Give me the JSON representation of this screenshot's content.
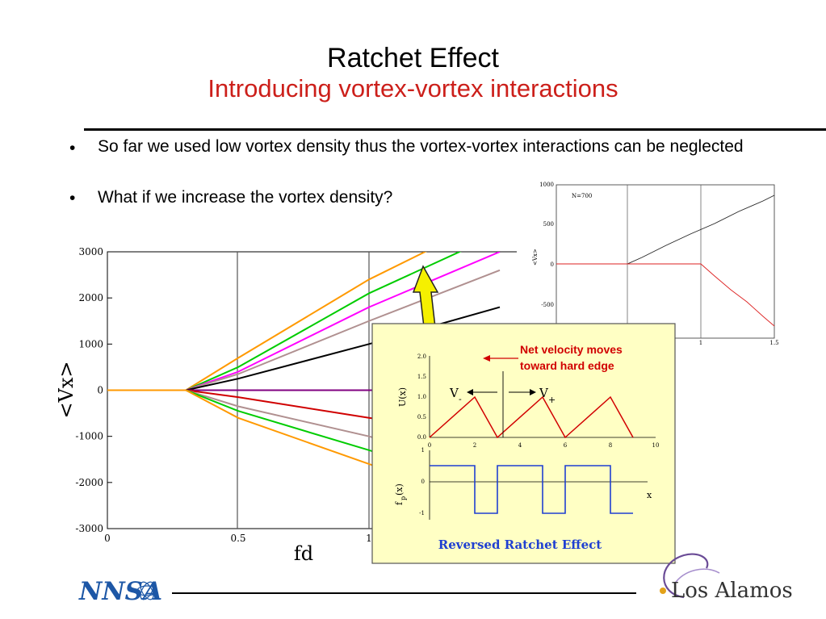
{
  "slide": {
    "title": "Ratchet Effect",
    "subtitle": "Introducing vortex-vortex interactions",
    "bullets": [
      "So far we used low vortex density thus the vortex-vortex interactions can be neglected",
      "What if we increase the vortex density?"
    ]
  },
  "main_plot": {
    "ylabel": "<Vx>",
    "xlabel": "fd",
    "yticks": [
      "3000",
      "2000",
      "1000",
      "0",
      "-1000",
      "-2000",
      "-3000"
    ],
    "xticks": [
      "0",
      "0.5",
      "1"
    ]
  },
  "inset_plot": {
    "label": "N=700",
    "ylabel": "<Vx>",
    "yticks": [
      "1000",
      "500",
      "0",
      "-500"
    ],
    "xticks": [
      "1",
      "1.5"
    ]
  },
  "callout": {
    "annotation_line1": "Net velocity moves",
    "annotation_line2": "toward hard edge",
    "u_label": "U(x)",
    "f_label": "f",
    "f_sub": "p",
    "f_suffix": "(x)",
    "x_label": "x",
    "v_minus": "V",
    "v_minus_sub": "-",
    "v_plus": "V",
    "v_plus_sub": "+",
    "u_yticks": [
      "2.0",
      "1.5",
      "1.0",
      "0.5",
      "0.0"
    ],
    "u_xticks": [
      "0",
      "2",
      "4",
      "6",
      "8",
      "10"
    ],
    "f_yticks": [
      "1",
      "0",
      "-1"
    ],
    "caption": "Reversed Ratchet Effect"
  },
  "logos": {
    "left": "NNSA",
    "right": "Los Alamos"
  },
  "colors": {
    "title": "#000000",
    "subtitle": "#cc1f1a",
    "callout_bg": "#ffffc4",
    "callout_red": "#d10000",
    "callout_blue": "#1f3fd1",
    "arrow_yellow": "#f5f000",
    "nnsa_blue": "#1d57a6"
  },
  "chart_data": {
    "type": "line",
    "xlabel": "fd",
    "ylabel": "<Vx>",
    "xlim": [
      0,
      1.5
    ],
    "ylim": [
      -3000,
      3000
    ],
    "x": [
      0,
      0.3,
      0.5,
      1.0,
      1.5
    ],
    "series": [
      {
        "color": "#ff9900",
        "values": [
          0,
          0,
          700,
          2400,
          3800
        ]
      },
      {
        "color": "#00cc00",
        "values": [
          0,
          0,
          500,
          2100,
          3400
        ]
      },
      {
        "color": "#ff00ff",
        "values": [
          0,
          0,
          400,
          1800,
          3000
        ]
      },
      {
        "color": "#b09090",
        "values": [
          0,
          0,
          350,
          1500,
          2600
        ]
      },
      {
        "color": "#000000",
        "values": [
          0,
          0,
          250,
          1000,
          1800
        ]
      },
      {
        "color": "#800080",
        "values": [
          0,
          0,
          0,
          0,
          0
        ]
      },
      {
        "color": "#d00000",
        "values": [
          0,
          0,
          -150,
          -600,
          -1000
        ]
      },
      {
        "color": "#b09090",
        "values": [
          0,
          0,
          -350,
          -1000,
          -1800
        ]
      },
      {
        "color": "#00cc00",
        "values": [
          0,
          0,
          -450,
          -1300,
          -2200
        ]
      },
      {
        "color": "#ff9900",
        "values": [
          0,
          0,
          -600,
          -1600,
          -2600
        ]
      }
    ]
  }
}
